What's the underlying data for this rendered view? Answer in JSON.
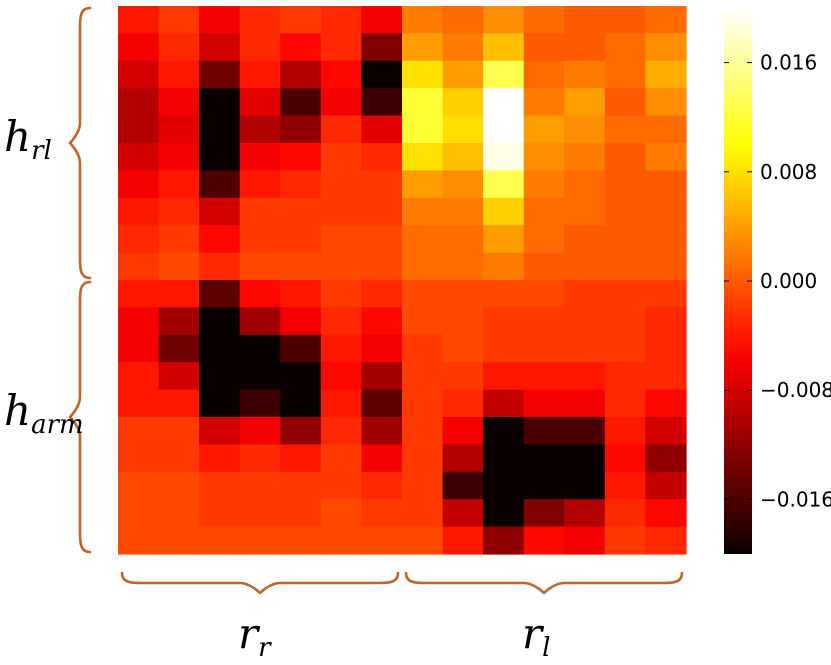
{
  "chart_data": {
    "type": "heatmap",
    "rows": 20,
    "cols": 14,
    "value_range": [
      -0.02,
      0.02
    ],
    "colormap": "hot",
    "colorbar": {
      "ticks": [
        {
          "value": 0.016,
          "label": "0.016"
        },
        {
          "value": 0.008,
          "label": "0.008"
        },
        {
          "value": 0.0,
          "label": "0.000"
        },
        {
          "value": -0.008,
          "label": "−0.008"
        },
        {
          "value": -0.016,
          "label": "−0.016"
        }
      ]
    },
    "row_groups": [
      {
        "name": "h",
        "sub": "rl",
        "start": 0,
        "end": 10
      },
      {
        "name": "h",
        "sub": "arm",
        "start": 10,
        "end": 20
      }
    ],
    "col_groups": [
      {
        "name": "r",
        "sub": "r",
        "start": 0,
        "end": 7
      },
      {
        "name": "r",
        "sub": "l",
        "start": 7,
        "end": 14
      }
    ],
    "values": [
      [
        -0.004,
        -0.002,
        -0.006,
        -0.003,
        -0.002,
        -0.003,
        -0.006,
        0.002,
        0.001,
        0.003,
        0.001,
        0.0,
        0.0,
        0.001
      ],
      [
        -0.006,
        -0.003,
        -0.008,
        -0.003,
        -0.005,
        -0.003,
        -0.013,
        0.004,
        0.002,
        0.006,
        0.0,
        0.0,
        0.001,
        0.003
      ],
      [
        -0.008,
        -0.004,
        -0.014,
        -0.004,
        -0.01,
        -0.005,
        -0.02,
        0.008,
        0.004,
        0.013,
        0.001,
        0.002,
        0.001,
        0.005
      ],
      [
        -0.01,
        -0.006,
        -0.02,
        -0.007,
        -0.016,
        -0.006,
        -0.017,
        0.012,
        0.007,
        0.02,
        0.002,
        0.004,
        0.0,
        0.003
      ],
      [
        -0.01,
        -0.007,
        -0.02,
        -0.01,
        -0.012,
        -0.003,
        -0.007,
        0.012,
        0.008,
        0.02,
        0.004,
        0.003,
        0.001,
        0.001
      ],
      [
        -0.008,
        -0.006,
        -0.02,
        -0.006,
        -0.005,
        -0.002,
        -0.003,
        0.008,
        0.006,
        0.019,
        0.003,
        0.002,
        0.0,
        0.002
      ],
      [
        -0.006,
        -0.004,
        -0.016,
        -0.004,
        -0.003,
        -0.002,
        -0.002,
        0.004,
        0.003,
        0.013,
        0.002,
        0.001,
        0.0,
        0.0
      ],
      [
        -0.004,
        -0.003,
        -0.008,
        -0.002,
        -0.002,
        -0.002,
        -0.002,
        0.002,
        0.002,
        0.007,
        0.001,
        0.001,
        0.0,
        0.0
      ],
      [
        -0.003,
        -0.002,
        -0.005,
        -0.002,
        -0.002,
        -0.001,
        -0.001,
        0.001,
        0.001,
        0.004,
        0.001,
        0.0,
        0.0,
        0.0
      ],
      [
        -0.002,
        -0.001,
        -0.003,
        -0.001,
        -0.001,
        -0.001,
        -0.001,
        0.001,
        0.001,
        0.002,
        0.0,
        0.0,
        0.0,
        0.0
      ],
      [
        -0.004,
        -0.004,
        -0.015,
        -0.005,
        -0.004,
        -0.002,
        -0.003,
        -0.001,
        -0.001,
        -0.001,
        -0.001,
        -0.002,
        -0.002,
        -0.002
      ],
      [
        -0.006,
        -0.011,
        -0.02,
        -0.011,
        -0.006,
        -0.003,
        -0.005,
        -0.001,
        -0.001,
        -0.002,
        -0.002,
        -0.002,
        -0.002,
        -0.003
      ],
      [
        -0.006,
        -0.014,
        -0.02,
        -0.02,
        -0.016,
        -0.004,
        -0.006,
        -0.002,
        -0.001,
        -0.002,
        -0.002,
        -0.002,
        -0.002,
        -0.003
      ],
      [
        -0.004,
        -0.008,
        -0.02,
        -0.02,
        -0.02,
        -0.005,
        -0.011,
        -0.002,
        -0.002,
        -0.004,
        -0.004,
        -0.004,
        -0.003,
        -0.003
      ],
      [
        -0.004,
        -0.004,
        -0.02,
        -0.017,
        -0.02,
        -0.004,
        -0.015,
        -0.002,
        -0.003,
        -0.009,
        -0.006,
        -0.006,
        -0.003,
        -0.005
      ],
      [
        -0.002,
        -0.002,
        -0.008,
        -0.006,
        -0.012,
        -0.003,
        -0.011,
        -0.002,
        -0.006,
        -0.02,
        -0.016,
        -0.016,
        -0.004,
        -0.008
      ],
      [
        -0.002,
        -0.002,
        -0.004,
        -0.003,
        -0.004,
        -0.002,
        -0.006,
        -0.002,
        -0.01,
        -0.02,
        -0.02,
        -0.02,
        -0.005,
        -0.012
      ],
      [
        -0.001,
        -0.001,
        -0.002,
        -0.002,
        -0.002,
        -0.002,
        -0.003,
        -0.002,
        -0.017,
        -0.02,
        -0.02,
        -0.02,
        -0.004,
        -0.009
      ],
      [
        -0.001,
        -0.001,
        -0.002,
        -0.002,
        -0.002,
        -0.001,
        -0.002,
        -0.002,
        -0.009,
        -0.02,
        -0.013,
        -0.01,
        -0.003,
        -0.005
      ],
      [
        -0.001,
        -0.001,
        -0.001,
        -0.001,
        -0.001,
        -0.001,
        -0.001,
        -0.001,
        -0.004,
        -0.012,
        -0.005,
        -0.006,
        -0.002,
        -0.003
      ]
    ]
  }
}
